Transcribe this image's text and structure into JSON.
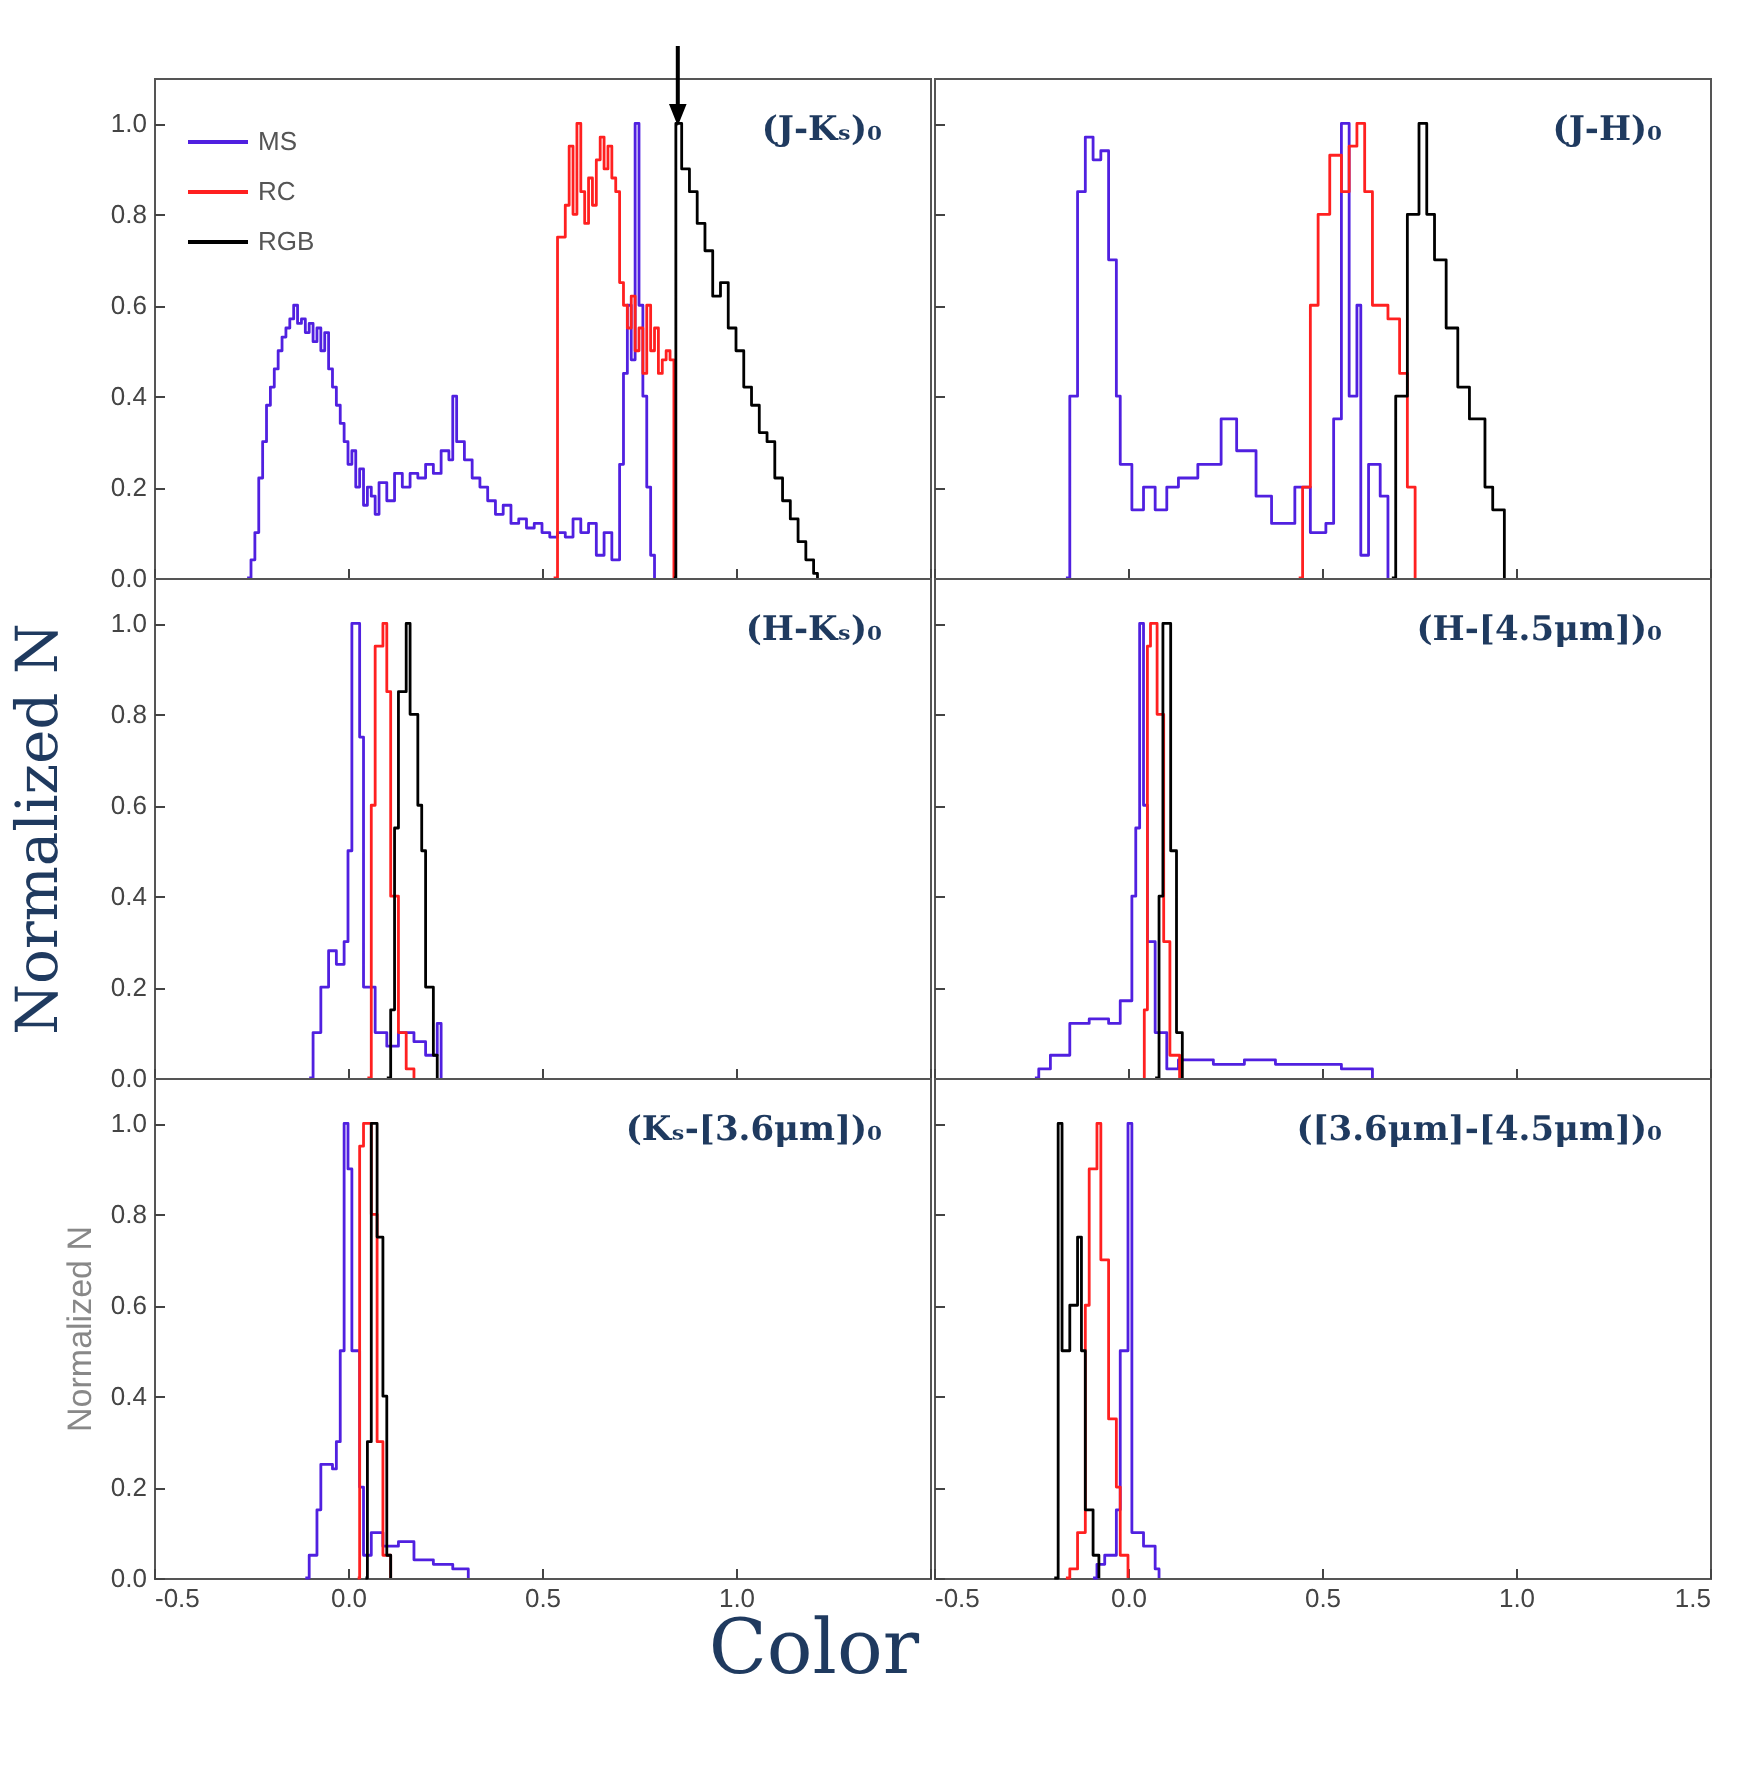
{
  "chart_data": [
    {
      "type": "step",
      "title": "(J-Kₛ)₀",
      "xlim": [
        -0.5,
        1.5
      ],
      "xticks": [
        {
          "value": -0.5,
          "label": null
        },
        {
          "value": 0,
          "label": null
        },
        {
          "value": 0.5,
          "label": null
        },
        {
          "value": 1,
          "label": null
        },
        {
          "value": 1.5,
          "label": null
        }
      ],
      "ylim": [
        0,
        1.1
      ],
      "yticks": [
        {
          "value": 0,
          "label": "0.0"
        },
        {
          "value": 0.2,
          "label": "0.2"
        },
        {
          "value": 0.4,
          "label": "0.4"
        },
        {
          "value": 0.6,
          "label": "0.6"
        },
        {
          "value": 0.8,
          "label": "0.8"
        },
        {
          "value": 1,
          "label": "1.0"
        }
      ],
      "tick_labels": "y",
      "legend": "top left",
      "series": [
        {
          "name": "MS",
          "color": "#5020e0",
          "x": [
            -0.26,
            -0.25,
            -0.24,
            -0.23,
            -0.22,
            -0.21,
            -0.2,
            -0.19,
            -0.18,
            -0.17,
            -0.16,
            -0.15,
            -0.14,
            -0.13,
            -0.12,
            -0.11,
            -0.1,
            -0.09,
            -0.08,
            -0.07,
            -0.06,
            -0.05,
            -0.04,
            -0.03,
            -0.02,
            -0.01,
            0.0,
            0.01,
            0.02,
            0.03,
            0.04,
            0.05,
            0.06,
            0.07,
            0.08,
            0.1,
            0.12,
            0.14,
            0.16,
            0.18,
            0.2,
            0.22,
            0.24,
            0.26,
            0.27,
            0.28,
            0.3,
            0.32,
            0.34,
            0.36,
            0.38,
            0.4,
            0.42,
            0.44,
            0.46,
            0.48,
            0.5,
            0.52,
            0.54,
            0.56,
            0.58,
            0.6,
            0.62,
            0.64,
            0.66,
            0.68,
            0.7,
            0.71,
            0.72,
            0.73,
            0.74,
            0.75,
            0.76,
            0.77,
            0.78,
            0.79
          ],
          "values": [
            0,
            0.04,
            0.1,
            0.22,
            0.3,
            0.38,
            0.42,
            0.46,
            0.5,
            0.53,
            0.55,
            0.57,
            0.6,
            0.56,
            0.57,
            0.54,
            0.56,
            0.52,
            0.55,
            0.5,
            0.54,
            0.46,
            0.42,
            0.38,
            0.34,
            0.3,
            0.25,
            0.28,
            0.2,
            0.24,
            0.16,
            0.2,
            0.18,
            0.14,
            0.21,
            0.17,
            0.23,
            0.2,
            0.23,
            0.22,
            0.25,
            0.23,
            0.28,
            0.26,
            0.4,
            0.3,
            0.26,
            0.22,
            0.2,
            0.17,
            0.14,
            0.16,
            0.12,
            0.13,
            0.11,
            0.12,
            0.1,
            0.09,
            0.1,
            0.09,
            0.13,
            0.1,
            0.12,
            0.05,
            0.1,
            0.04,
            0.25,
            0.45,
            0.6,
            0.48,
            1.0,
            0.6,
            0.4,
            0.2,
            0.05,
            0
          ]
        },
        {
          "name": "RC",
          "color": "#ff2020",
          "x": [
            0.53,
            0.54,
            0.56,
            0.57,
            0.58,
            0.59,
            0.6,
            0.61,
            0.62,
            0.63,
            0.64,
            0.65,
            0.66,
            0.67,
            0.68,
            0.69,
            0.7,
            0.71,
            0.72,
            0.73,
            0.74,
            0.75,
            0.76,
            0.77,
            0.78,
            0.79,
            0.8,
            0.81,
            0.82,
            0.83,
            0.84
          ],
          "values": [
            0,
            0.75,
            0.82,
            0.95,
            0.8,
            1.0,
            0.85,
            0.78,
            0.88,
            0.82,
            0.92,
            0.97,
            0.9,
            0.95,
            0.88,
            0.85,
            0.65,
            0.6,
            0.55,
            0.62,
            0.5,
            0.55,
            0.45,
            0.6,
            0.5,
            0.55,
            0.45,
            0.48,
            0.5,
            0.48,
            0
          ]
        },
        {
          "name": "RGB",
          "color": "#000000",
          "x": [
            0.84,
            0.845,
            0.86,
            0.88,
            0.9,
            0.92,
            0.94,
            0.96,
            0.98,
            1.0,
            1.02,
            1.04,
            1.06,
            1.08,
            1.1,
            1.12,
            1.14,
            1.16,
            1.18,
            1.2,
            1.21
          ],
          "values": [
            0,
            1.0,
            0.9,
            0.85,
            0.78,
            0.72,
            0.62,
            0.65,
            0.55,
            0.5,
            0.42,
            0.38,
            0.32,
            0.3,
            0.22,
            0.17,
            0.13,
            0.08,
            0.04,
            0.01,
            0
          ]
        }
      ]
    },
    {
      "type": "step",
      "title": "(J-H)₀",
      "xlim": [
        -0.5,
        1.5
      ],
      "xticks": [
        {
          "value": -0.5,
          "label": null
        },
        {
          "value": 0,
          "label": null
        },
        {
          "value": 0.5,
          "label": null
        },
        {
          "value": 1,
          "label": null
        },
        {
          "value": 1.5,
          "label": null
        }
      ],
      "ylim": [
        0,
        1.1
      ],
      "yticks": [
        {
          "value": 0,
          "label": null
        },
        {
          "value": 0.2,
          "label": null
        },
        {
          "value": 0.4,
          "label": null
        },
        {
          "value": 0.6,
          "label": null
        },
        {
          "value": 0.8,
          "label": null
        },
        {
          "value": 1,
          "label": null
        }
      ],
      "tick_labels": false,
      "series": [
        {
          "color": "#5020e0",
          "x": [
            -0.16,
            -0.15,
            -0.13,
            -0.11,
            -0.09,
            -0.07,
            -0.05,
            -0.03,
            -0.02,
            0.01,
            0.04,
            0.07,
            0.1,
            0.13,
            0.18,
            0.24,
            0.28,
            0.33,
            0.37,
            0.43,
            0.47,
            0.51,
            0.53,
            0.55,
            0.57,
            0.59,
            0.6,
            0.62,
            0.65,
            0.67
          ],
          "values": [
            0,
            0.4,
            0.85,
            0.97,
            0.92,
            0.94,
            0.7,
            0.4,
            0.25,
            0.15,
            0.2,
            0.15,
            0.2,
            0.22,
            0.25,
            0.35,
            0.28,
            0.18,
            0.12,
            0.2,
            0.1,
            0.12,
            0.35,
            1.0,
            0.4,
            0.6,
            0.05,
            0.25,
            0.18,
            0
          ]
        },
        {
          "color": "#ff2020",
          "x": [
            0.44,
            0.45,
            0.47,
            0.49,
            0.52,
            0.55,
            0.57,
            0.59,
            0.61,
            0.63,
            0.67,
            0.7,
            0.72,
            0.74
          ],
          "values": [
            0,
            0.2,
            0.6,
            0.8,
            0.93,
            0.85,
            0.95,
            1.0,
            0.85,
            0.6,
            0.57,
            0.45,
            0.2,
            0
          ]
        },
        {
          "color": "#000000",
          "x": [
            0.68,
            0.69,
            0.72,
            0.75,
            0.77,
            0.79,
            0.82,
            0.85,
            0.88,
            0.92,
            0.94,
            0.97
          ],
          "values": [
            0,
            0.4,
            0.8,
            1.0,
            0.8,
            0.7,
            0.55,
            0.42,
            0.35,
            0.2,
            0.15,
            0
          ]
        }
      ]
    },
    {
      "type": "step",
      "title": "(H-Kₛ)₀",
      "ylabel": "Normalized N",
      "xlim": [
        -0.5,
        1.5
      ],
      "xticks": [
        {
          "value": -0.5,
          "label": null
        },
        {
          "value": 0,
          "label": null
        },
        {
          "value": 0.5,
          "label": null
        },
        {
          "value": 1,
          "label": null
        },
        {
          "value": 1.5,
          "label": null
        }
      ],
      "ylim": [
        0,
        1.1
      ],
      "yticks": [
        {
          "value": 0,
          "label": "0.0"
        },
        {
          "value": 0.2,
          "label": "0.2"
        },
        {
          "value": 0.4,
          "label": "0.4"
        },
        {
          "value": 0.6,
          "label": "0.6"
        },
        {
          "value": 0.8,
          "label": "0.8"
        },
        {
          "value": 1,
          "label": "1.0"
        }
      ],
      "tick_labels": "y",
      "series": [
        {
          "color": "#5020e0",
          "x": [
            -0.1,
            -0.09,
            -0.07,
            -0.05,
            -0.03,
            -0.01,
            0.0,
            0.01,
            0.03,
            0.04,
            0.07,
            0.1,
            0.13,
            0.17,
            0.2,
            0.23,
            0.24
          ],
          "values": [
            0,
            0.1,
            0.2,
            0.28,
            0.25,
            0.3,
            0.5,
            1.0,
            0.75,
            0.2,
            0.1,
            0.07,
            0.1,
            0.08,
            0.05,
            0.12,
            0
          ]
        },
        {
          "color": "#ff2020",
          "x": [
            0.05,
            0.06,
            0.07,
            0.09,
            0.1,
            0.11,
            0.13,
            0.15,
            0.17
          ],
          "values": [
            0,
            0.6,
            0.95,
            1.0,
            0.85,
            0.4,
            0.1,
            0.02,
            0
          ]
        },
        {
          "color": "#000000",
          "x": [
            0.1,
            0.11,
            0.12,
            0.13,
            0.15,
            0.16,
            0.18,
            0.19,
            0.2,
            0.22,
            0.23
          ],
          "values": [
            0,
            0.15,
            0.55,
            0.85,
            1.0,
            0.8,
            0.6,
            0.5,
            0.2,
            0.05,
            0
          ]
        }
      ]
    },
    {
      "type": "step",
      "title": "(H-[4.5μm])₀",
      "xlim": [
        -0.5,
        1.5
      ],
      "xticks": [
        {
          "value": -0.5,
          "label": null
        },
        {
          "value": 0,
          "label": null
        },
        {
          "value": 0.5,
          "label": null
        },
        {
          "value": 1,
          "label": null
        },
        {
          "value": 1.5,
          "label": null
        }
      ],
      "ylim": [
        0,
        1.1
      ],
      "yticks": [
        {
          "value": 0,
          "label": null
        },
        {
          "value": 0.2,
          "label": null
        },
        {
          "value": 0.4,
          "label": null
        },
        {
          "value": 0.6,
          "label": null
        },
        {
          "value": 0.8,
          "label": null
        },
        {
          "value": 1,
          "label": null
        }
      ],
      "tick_labels": false,
      "series": [
        {
          "color": "#5020e0",
          "x": [
            -0.24,
            -0.23,
            -0.2,
            -0.15,
            -0.1,
            -0.05,
            -0.02,
            0.01,
            0.02,
            0.03,
            0.04,
            0.05,
            0.07,
            0.1,
            0.13,
            0.22,
            0.3,
            0.38,
            0.47,
            0.55,
            0.63
          ],
          "values": [
            0,
            0.02,
            0.05,
            0.12,
            0.13,
            0.12,
            0.17,
            0.4,
            0.55,
            1.0,
            0.6,
            0.3,
            0.1,
            0.02,
            0.04,
            0.03,
            0.04,
            0.03,
            0.03,
            0.02,
            0
          ]
        },
        {
          "color": "#ff2020",
          "x": [
            0.04,
            0.042,
            0.05,
            0.058,
            0.075,
            0.092,
            0.108,
            0.133
          ],
          "values": [
            0,
            0.15,
            0.95,
            1.0,
            0.8,
            0.3,
            0.05,
            0
          ]
        },
        {
          "color": "#000000",
          "x": [
            0.07,
            0.08,
            0.09,
            0.11,
            0.125,
            0.14
          ],
          "values": [
            0,
            0.4,
            1.0,
            0.5,
            0.1,
            0
          ]
        }
      ]
    },
    {
      "type": "step",
      "title": "(Kₛ-[3.6μm])₀",
      "ylabel": "Normalized N",
      "xlabel": "Color",
      "xlim": [
        -0.5,
        1.5
      ],
      "xticks": [
        {
          "value": -0.5,
          "label": "-0.5"
        },
        {
          "value": 0,
          "label": "0.0"
        },
        {
          "value": 0.5,
          "label": "0.5"
        },
        {
          "value": 1,
          "label": "1.0"
        },
        {
          "value": 1.5,
          "label": null
        }
      ],
      "ylim": [
        0,
        1.1
      ],
      "yticks": [
        {
          "value": 0,
          "label": "0.0"
        },
        {
          "value": 0.2,
          "label": "0.2"
        },
        {
          "value": 0.4,
          "label": "0.4"
        },
        {
          "value": 0.6,
          "label": "0.6"
        },
        {
          "value": 0.8,
          "label": "0.8"
        },
        {
          "value": 1,
          "label": "1.0"
        }
      ],
      "series": [
        {
          "color": "#5020e0",
          "x": [
            -0.11,
            -0.1,
            -0.08,
            -0.07,
            -0.04,
            -0.03,
            -0.02,
            -0.01,
            0.0,
            0.01,
            0.03,
            0.04,
            0.06,
            0.09,
            0.13,
            0.17,
            0.22,
            0.27,
            0.31
          ],
          "values": [
            0,
            0.05,
            0.15,
            0.25,
            0.24,
            0.3,
            0.5,
            1.0,
            0.9,
            0.5,
            0.2,
            0.05,
            0.1,
            0.07,
            0.08,
            0.04,
            0.03,
            0.02,
            0
          ]
        },
        {
          "color": "#ff2020",
          "x": [
            0.025,
            0.03,
            0.04,
            0.06,
            0.075,
            0.09,
            0.11
          ],
          "values": [
            0,
            0.95,
            1.0,
            0.8,
            0.3,
            0.05,
            0
          ]
        },
        {
          "color": "#000000",
          "x": [
            0.045,
            0.05,
            0.06,
            0.075,
            0.09,
            0.1,
            0.11
          ],
          "values": [
            0,
            0.3,
            1.0,
            0.75,
            0.4,
            0.05,
            0
          ]
        }
      ]
    },
    {
      "type": "step",
      "title": "([3.6μm]-[4.5μm])₀",
      "xlim": [
        -0.5,
        1.5
      ],
      "xticks": [
        {
          "value": -0.5,
          "label": "-0.5"
        },
        {
          "value": 0,
          "label": "0.0"
        },
        {
          "value": 0.5,
          "label": "0.5"
        },
        {
          "value": 1,
          "label": "1.0"
        },
        {
          "value": 1.5,
          "label": "1.5"
        }
      ],
      "ylim": [
        0,
        1.1
      ],
      "yticks": [
        {
          "value": 0,
          "label": null
        },
        {
          "value": 0.2,
          "label": null
        },
        {
          "value": 0.4,
          "label": null
        },
        {
          "value": 0.6,
          "label": null
        },
        {
          "value": 0.8,
          "label": null
        },
        {
          "value": 1,
          "label": null
        }
      ],
      "tick_labels": "x",
      "series": [
        {
          "color": "#5020e0",
          "x": [
            -0.09,
            -0.08,
            -0.06,
            -0.03,
            -0.02,
            0.0,
            0.01,
            0.04,
            0.07,
            0.08
          ],
          "values": [
            0,
            0.03,
            0.05,
            0.15,
            0.5,
            1.0,
            0.1,
            0.07,
            0.02,
            0
          ]
        },
        {
          "color": "#ff2020",
          "x": [
            -0.16,
            -0.15,
            -0.13,
            -0.11,
            -0.1,
            -0.08,
            -0.07,
            -0.05,
            -0.03,
            -0.02,
            0.0
          ],
          "values": [
            0,
            0.02,
            0.1,
            0.6,
            0.9,
            1.0,
            0.7,
            0.35,
            0.2,
            0.05,
            0
          ]
        },
        {
          "color": "#000000",
          "x": [
            -0.19,
            -0.18,
            -0.17,
            -0.15,
            -0.13,
            -0.12,
            -0.11,
            -0.09,
            -0.075
          ],
          "values": [
            0,
            1.0,
            0.5,
            0.6,
            0.75,
            0.5,
            0.15,
            0.05,
            0
          ]
        }
      ]
    }
  ]
}
